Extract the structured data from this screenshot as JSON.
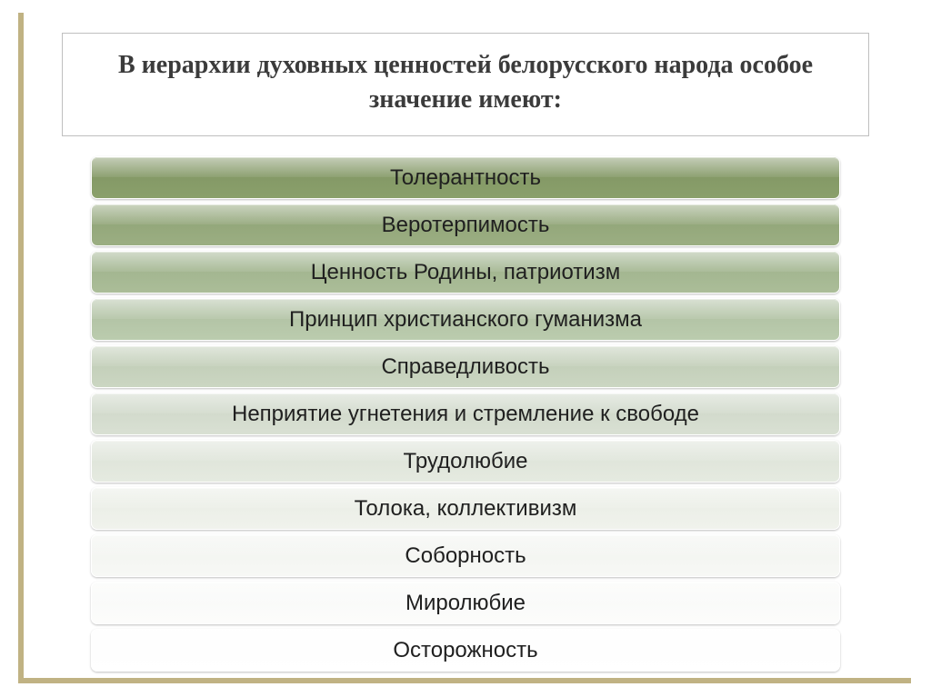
{
  "title": "В иерархии духовных ценностей белорусского народа особое значение имеют:",
  "title_fontsize": 28,
  "title_font": "Georgia",
  "title_border_color": "#bfbfbf",
  "frame_color": "#c0b283",
  "list": {
    "item_height": 47,
    "item_gap": 5,
    "item_radius": 7,
    "item_fontsize": 24,
    "item_text_color": "#202020",
    "item_border_color": "#ffffff",
    "items": [
      {
        "label": "Толерантность",
        "color_top": "#7f9362",
        "color_bottom": "#8aa06b"
      },
      {
        "label": "Веротерпимость",
        "color_top": "#8da174",
        "color_bottom": "#9bae82"
      },
      {
        "label": "Ценность Родины, патриотизм",
        "color_top": "#9cb08a",
        "color_bottom": "#abbd98"
      },
      {
        "label": "Принцип христианского гуманизма",
        "color_top": "#acbd9f",
        "color_bottom": "#bbccae"
      },
      {
        "label": "Справедливость",
        "color_top": "#bdcab3",
        "color_bottom": "#cbd6c2"
      },
      {
        "label": "Неприятие угнетения и стремление к свободе",
        "color_top": "#ccd5c6",
        "color_bottom": "#d9e0d3"
      },
      {
        "label": "Трудолюбие",
        "color_top": "#dbe1d6",
        "color_bottom": "#e5eae0"
      },
      {
        "label": "Толока, коллективизм",
        "color_top": "#e8ece4",
        "color_bottom": "#f0f2ec"
      },
      {
        "label": "Соборность",
        "color_top": "#f1f3ef",
        "color_bottom": "#f7f8f5"
      },
      {
        "label": "Миролюбие",
        "color_top": "#f8f9f7",
        "color_bottom": "#fcfcfb"
      },
      {
        "label": "Осторожность",
        "color_top": "#fdfdfd",
        "color_bottom": "#ffffff"
      }
    ]
  },
  "background_color": "#ffffff"
}
